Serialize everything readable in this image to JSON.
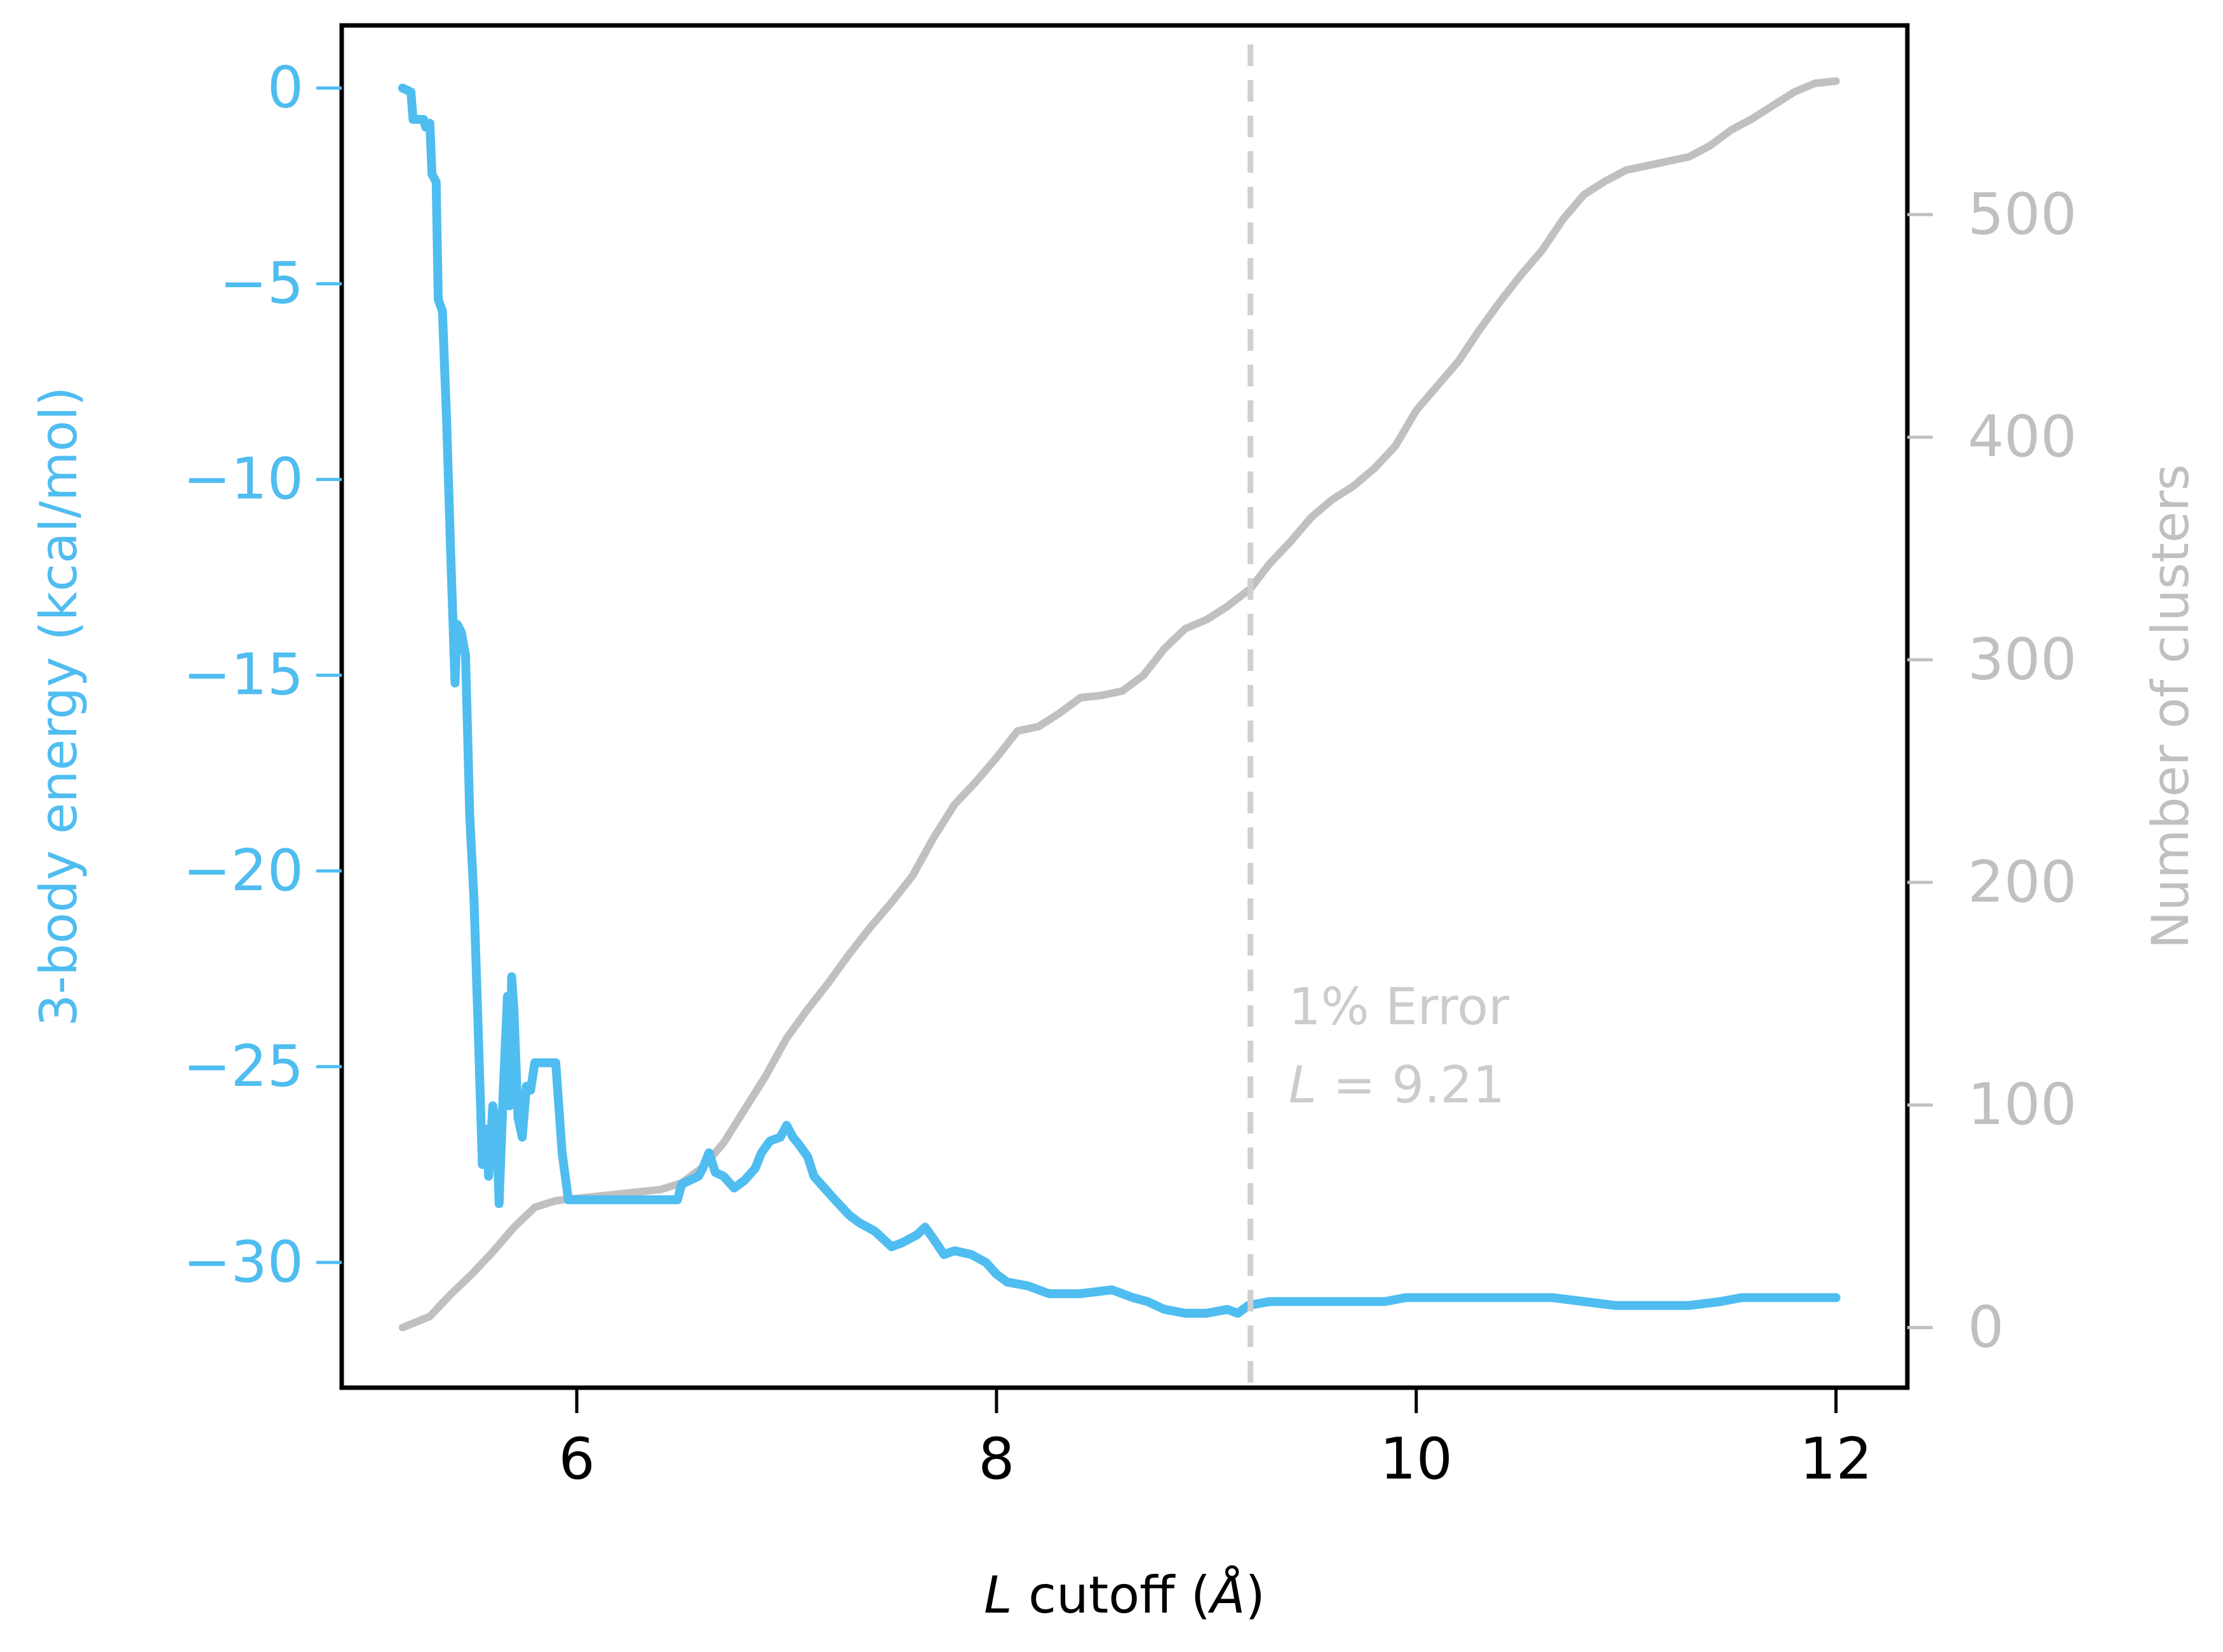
{
  "colors": {
    "energy": "#4fbdf0",
    "clusters": "#c0c0c0",
    "cutoff_line": "#d0d0d0",
    "annotation": "#cccccc",
    "axes": "#000000"
  },
  "chart_data": {
    "type": "line",
    "title": "",
    "xlabel_italic": "L",
    "xlabel_rest": " cutoff (",
    "xlabel_unit": "Å",
    "xlabel_close": ")",
    "ylabel_left": "3-body energy (kcal/mol)",
    "ylabel_right": "Number of clusters",
    "xlim": [
      4.88,
      12.34
    ],
    "ylim_left": [
      -33.2,
      1.6
    ],
    "ylim_right": [
      -27,
      585
    ],
    "x_ticks": [
      6,
      8,
      10,
      12
    ],
    "y_ticks_left": [
      0,
      -5,
      -10,
      -15,
      -20,
      -25,
      -30
    ],
    "y_ticks_right": [
      0,
      100,
      200,
      300,
      400,
      500
    ],
    "x_tick_labels": [
      "6",
      "8",
      "10",
      "12"
    ],
    "y_tick_labels_left": [
      "0",
      "−5",
      "−10",
      "−15",
      "−20",
      "−25",
      "−30"
    ],
    "y_tick_labels_right": [
      "0",
      "100",
      "200",
      "300",
      "400",
      "500"
    ],
    "annotation": {
      "line1": "1% Error",
      "line2_italic": "L",
      "line2_rest": " = 9.21",
      "x_cutoff": 9.21
    },
    "series": [
      {
        "axis": "left",
        "points": [
          [
            5.17,
            0.0
          ],
          [
            5.21,
            -0.1
          ],
          [
            5.22,
            -0.8
          ],
          [
            5.27,
            -0.8
          ],
          [
            5.28,
            -1.0
          ],
          [
            5.3,
            -0.9
          ],
          [
            5.31,
            -2.2
          ],
          [
            5.33,
            -2.4
          ],
          [
            5.34,
            -5.4
          ],
          [
            5.36,
            -5.7
          ],
          [
            5.38,
            -8.5
          ],
          [
            5.4,
            -12.0
          ],
          [
            5.42,
            -15.2
          ],
          [
            5.43,
            -13.7
          ],
          [
            5.45,
            -13.9
          ],
          [
            5.47,
            -14.5
          ],
          [
            5.49,
            -18.6
          ],
          [
            5.51,
            -20.7
          ],
          [
            5.53,
            -24.0
          ],
          [
            5.55,
            -27.5
          ],
          [
            5.57,
            -26.6
          ],
          [
            5.58,
            -27.8
          ],
          [
            5.6,
            -26.0
          ],
          [
            5.62,
            -26.8
          ],
          [
            5.63,
            -28.5
          ],
          [
            5.65,
            -25.6
          ],
          [
            5.67,
            -23.2
          ],
          [
            5.68,
            -26.0
          ],
          [
            5.69,
            -22.7
          ],
          [
            5.7,
            -23.5
          ],
          [
            5.72,
            -26.3
          ],
          [
            5.74,
            -26.8
          ],
          [
            5.76,
            -25.5
          ],
          [
            5.78,
            -25.6
          ],
          [
            5.8,
            -24.9
          ],
          [
            5.9,
            -24.9
          ],
          [
            5.93,
            -27.2
          ],
          [
            5.96,
            -28.4
          ],
          [
            6.1,
            -28.4
          ],
          [
            6.3,
            -28.4
          ],
          [
            6.48,
            -28.4
          ],
          [
            6.5,
            -28.0
          ],
          [
            6.58,
            -27.8
          ],
          [
            6.6,
            -27.6
          ],
          [
            6.63,
            -27.2
          ],
          [
            6.66,
            -27.7
          ],
          [
            6.7,
            -27.8
          ],
          [
            6.75,
            -28.1
          ],
          [
            6.8,
            -27.9
          ],
          [
            6.85,
            -27.6
          ],
          [
            6.88,
            -27.2
          ],
          [
            6.92,
            -26.9
          ],
          [
            6.97,
            -26.8
          ],
          [
            7.0,
            -26.5
          ],
          [
            7.03,
            -26.8
          ],
          [
            7.06,
            -27.0
          ],
          [
            7.1,
            -27.3
          ],
          [
            7.13,
            -27.8
          ],
          [
            7.18,
            -28.1
          ],
          [
            7.23,
            -28.4
          ],
          [
            7.3,
            -28.8
          ],
          [
            7.35,
            -29.0
          ],
          [
            7.42,
            -29.2
          ],
          [
            7.5,
            -29.6
          ],
          [
            7.55,
            -29.5
          ],
          [
            7.62,
            -29.3
          ],
          [
            7.66,
            -29.1
          ],
          [
            7.7,
            -29.4
          ],
          [
            7.75,
            -29.8
          ],
          [
            7.8,
            -29.7
          ],
          [
            7.88,
            -29.8
          ],
          [
            7.95,
            -30.0
          ],
          [
            8.0,
            -30.3
          ],
          [
            8.05,
            -30.5
          ],
          [
            8.15,
            -30.6
          ],
          [
            8.25,
            -30.8
          ],
          [
            8.4,
            -30.8
          ],
          [
            8.55,
            -30.7
          ],
          [
            8.65,
            -30.9
          ],
          [
            8.72,
            -31.0
          ],
          [
            8.8,
            -31.2
          ],
          [
            8.9,
            -31.3
          ],
          [
            9.0,
            -31.3
          ],
          [
            9.1,
            -31.2
          ],
          [
            9.15,
            -31.3
          ],
          [
            9.2,
            -31.1
          ],
          [
            9.3,
            -31.0
          ],
          [
            9.5,
            -31.0
          ],
          [
            9.7,
            -31.0
          ],
          [
            9.85,
            -31.0
          ],
          [
            9.95,
            -30.9
          ],
          [
            10.1,
            -30.9
          ],
          [
            10.3,
            -30.9
          ],
          [
            10.5,
            -30.9
          ],
          [
            10.65,
            -30.9
          ],
          [
            10.8,
            -31.0
          ],
          [
            10.95,
            -31.1
          ],
          [
            11.1,
            -31.1
          ],
          [
            11.3,
            -31.1
          ],
          [
            11.45,
            -31.0
          ],
          [
            11.55,
            -30.9
          ],
          [
            11.8,
            -30.9
          ],
          [
            12.0,
            -30.9
          ]
        ]
      },
      {
        "axis": "right",
        "points": [
          [
            5.17,
            0
          ],
          [
            5.3,
            5
          ],
          [
            5.4,
            15
          ],
          [
            5.5,
            24
          ],
          [
            5.6,
            34
          ],
          [
            5.7,
            45
          ],
          [
            5.8,
            54
          ],
          [
            5.9,
            57
          ],
          [
            6.0,
            58
          ],
          [
            6.2,
            60
          ],
          [
            6.4,
            62
          ],
          [
            6.5,
            65
          ],
          [
            6.6,
            72
          ],
          [
            6.7,
            83
          ],
          [
            6.8,
            98
          ],
          [
            6.9,
            113
          ],
          [
            7.0,
            130
          ],
          [
            7.1,
            143
          ],
          [
            7.2,
            155
          ],
          [
            7.3,
            168
          ],
          [
            7.4,
            180
          ],
          [
            7.5,
            191
          ],
          [
            7.6,
            203
          ],
          [
            7.7,
            220
          ],
          [
            7.8,
            235
          ],
          [
            7.9,
            245
          ],
          [
            8.0,
            256
          ],
          [
            8.1,
            268
          ],
          [
            8.2,
            270
          ],
          [
            8.3,
            276
          ],
          [
            8.4,
            283
          ],
          [
            8.5,
            284
          ],
          [
            8.6,
            286
          ],
          [
            8.7,
            293
          ],
          [
            8.8,
            305
          ],
          [
            8.9,
            314
          ],
          [
            9.0,
            318
          ],
          [
            9.1,
            324
          ],
          [
            9.21,
            332
          ],
          [
            9.3,
            343
          ],
          [
            9.4,
            353
          ],
          [
            9.5,
            364
          ],
          [
            9.6,
            372
          ],
          [
            9.7,
            378
          ],
          [
            9.8,
            386
          ],
          [
            9.9,
            396
          ],
          [
            10.0,
            412
          ],
          [
            10.1,
            423
          ],
          [
            10.2,
            434
          ],
          [
            10.3,
            448
          ],
          [
            10.4,
            461
          ],
          [
            10.5,
            473
          ],
          [
            10.6,
            484
          ],
          [
            10.7,
            498
          ],
          [
            10.8,
            509
          ],
          [
            10.9,
            515
          ],
          [
            11.0,
            520
          ],
          [
            11.1,
            522
          ],
          [
            11.2,
            524
          ],
          [
            11.3,
            526
          ],
          [
            11.4,
            531
          ],
          [
            11.5,
            538
          ],
          [
            11.6,
            543
          ],
          [
            11.7,
            549
          ],
          [
            11.8,
            555
          ],
          [
            11.9,
            559
          ],
          [
            12.0,
            560
          ]
        ]
      }
    ]
  }
}
